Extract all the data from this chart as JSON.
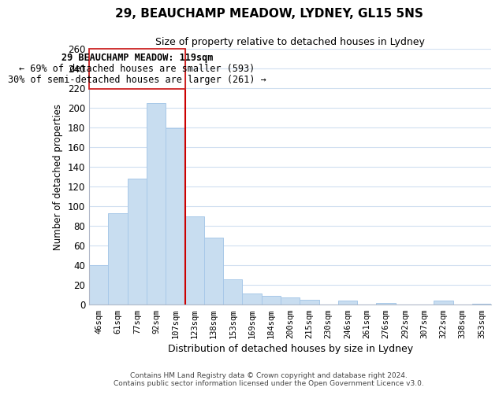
{
  "title": "29, BEAUCHAMP MEADOW, LYDNEY, GL15 5NS",
  "subtitle": "Size of property relative to detached houses in Lydney",
  "xlabel": "Distribution of detached houses by size in Lydney",
  "ylabel": "Number of detached properties",
  "categories": [
    "46sqm",
    "61sqm",
    "77sqm",
    "92sqm",
    "107sqm",
    "123sqm",
    "138sqm",
    "153sqm",
    "169sqm",
    "184sqm",
    "200sqm",
    "215sqm",
    "230sqm",
    "246sqm",
    "261sqm",
    "276sqm",
    "292sqm",
    "307sqm",
    "322sqm",
    "338sqm",
    "353sqm"
  ],
  "values": [
    40,
    93,
    128,
    205,
    179,
    90,
    68,
    26,
    11,
    9,
    7,
    5,
    0,
    4,
    0,
    2,
    0,
    0,
    4,
    0,
    1
  ],
  "bar_color": "#c8ddf0",
  "bar_edge_color": "#a8c8e8",
  "vline_color": "#cc0000",
  "vline_x_idx": 4.5,
  "ylim": [
    0,
    260
  ],
  "yticks": [
    0,
    20,
    40,
    60,
    80,
    100,
    120,
    140,
    160,
    180,
    200,
    220,
    240,
    260
  ],
  "annotation_text_line1": "29 BEAUCHAMP MEADOW: 119sqm",
  "annotation_text_line2": "← 69% of detached houses are smaller (593)",
  "annotation_text_line3": "30% of semi-detached houses are larger (261) →",
  "footer_line1": "Contains HM Land Registry data © Crown copyright and database right 2024.",
  "footer_line2": "Contains public sector information licensed under the Open Government Licence v3.0.",
  "background_color": "#ffffff",
  "grid_color": "#d0dff0",
  "box_edge_color": "#cc2222",
  "spine_color": "#b0b8c8",
  "title_fontsize": 11,
  "subtitle_fontsize": 9,
  "ylabel_text": "Number of detached properties"
}
